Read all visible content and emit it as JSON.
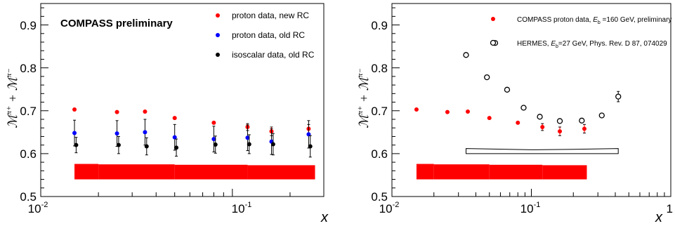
{
  "chart_data": [
    {
      "type": "scatter",
      "title": "COMPASS preliminary",
      "xlabel": "x",
      "ylabel": "M^{π+} + M^{π−}",
      "xscale": "log",
      "xlim": [
        0.01,
        0.3
      ],
      "ylim": [
        0.5,
        0.95
      ],
      "x_ticks": [
        {
          "value": 0.01,
          "base": "10",
          "exp": "-2"
        },
        {
          "value": 0.1,
          "base": "10",
          "exp": "-1"
        }
      ],
      "y_ticks": [
        {
          "value": 0.5,
          "label": "0.5"
        },
        {
          "value": 0.6,
          "label": "0.6"
        },
        {
          "value": 0.7,
          "label": "0.7"
        },
        {
          "value": 0.8,
          "label": "0.8"
        },
        {
          "value": 0.9,
          "label": "0.9"
        }
      ],
      "legend_position": "top-right",
      "series": [
        {
          "name": "proton data, new RC",
          "color": "#ff0000",
          "marker": "filled-circle",
          "points": [
            {
              "x": 0.015,
              "y": 0.703,
              "err": 0.002
            },
            {
              "x": 0.025,
              "y": 0.697,
              "err": 0.002
            },
            {
              "x": 0.035,
              "y": 0.698,
              "err": 0.002
            },
            {
              "x": 0.05,
              "y": 0.683,
              "err": 0.002
            },
            {
              "x": 0.08,
              "y": 0.672,
              "err": 0.002
            },
            {
              "x": 0.12,
              "y": 0.662,
              "err": 0.008
            },
            {
              "x": 0.16,
              "y": 0.652,
              "err": 0.01
            },
            {
              "x": 0.25,
              "y": 0.658,
              "err": 0.01
            }
          ]
        },
        {
          "name": "proton data, old RC",
          "color": "#0000ff",
          "marker": "filled-circle",
          "points": [
            {
              "x": 0.015,
              "y": 0.648,
              "err": 0.03
            },
            {
              "x": 0.025,
              "y": 0.647,
              "err": 0.03
            },
            {
              "x": 0.035,
              "y": 0.65,
              "err": 0.03
            },
            {
              "x": 0.05,
              "y": 0.638,
              "err": 0.03
            },
            {
              "x": 0.08,
              "y": 0.634,
              "err": 0.03
            },
            {
              "x": 0.12,
              "y": 0.637,
              "err": 0.03
            },
            {
              "x": 0.16,
              "y": 0.628,
              "err": 0.03
            },
            {
              "x": 0.25,
              "y": 0.645,
              "err": 0.032
            }
          ]
        },
        {
          "name": "isoscalar data, old RC",
          "color": "#000000",
          "marker": "filled-circle",
          "points": [
            {
              "x": 0.0153,
              "y": 0.62,
              "err": 0.018
            },
            {
              "x": 0.0255,
              "y": 0.62,
              "err": 0.02
            },
            {
              "x": 0.0357,
              "y": 0.617,
              "err": 0.02
            },
            {
              "x": 0.051,
              "y": 0.614,
              "err": 0.02
            },
            {
              "x": 0.0816,
              "y": 0.621,
              "err": 0.02
            },
            {
              "x": 0.1224,
              "y": 0.622,
              "err": 0.022
            },
            {
              "x": 0.1632,
              "y": 0.622,
              "err": 0.025
            },
            {
              "x": 0.255,
              "y": 0.617,
              "err": 0.025
            }
          ]
        }
      ],
      "systematic_band": {
        "color": "#ff0000",
        "segments": [
          {
            "x0": 0.015,
            "x1": 0.02,
            "y0": 0.54,
            "y1": 0.576
          },
          {
            "x0": 0.02,
            "x1": 0.05,
            "y0": 0.54,
            "y1": 0.575
          },
          {
            "x0": 0.05,
            "x1": 0.12,
            "y0": 0.54,
            "y1": 0.574
          },
          {
            "x0": 0.12,
            "x1": 0.27,
            "y0": 0.54,
            "y1": 0.573
          }
        ]
      }
    },
    {
      "type": "scatter",
      "xlabel": "x",
      "ylabel": "M^{π+} + M^{π−}",
      "xscale": "log",
      "xlim": [
        0.01,
        1
      ],
      "ylim": [
        0.5,
        0.95
      ],
      "x_ticks": [
        {
          "value": 0.01,
          "base": "10",
          "exp": "-2"
        },
        {
          "value": 0.1,
          "base": "10",
          "exp": "-1"
        },
        {
          "value": 1,
          "base": "1",
          "exp": ""
        }
      ],
      "y_ticks": [
        {
          "value": 0.5,
          "label": "0.5"
        },
        {
          "value": 0.6,
          "label": "0.6"
        },
        {
          "value": 0.7,
          "label": "0.7"
        },
        {
          "value": 0.8,
          "label": "0.8"
        },
        {
          "value": 0.9,
          "label": "0.9"
        }
      ],
      "legend_position": "top-right",
      "series": [
        {
          "name": "COMPASS proton data, E_b =160 GeV, preliminary",
          "legend_parts": {
            "pre": "COMPASS proton data, ",
            "italic": "E",
            "sub": "b",
            "post": " =160 GeV, preliminary"
          },
          "color": "#ff0000",
          "marker": "filled-circle",
          "points": [
            {
              "x": 0.015,
              "y": 0.703,
              "err": 0.002
            },
            {
              "x": 0.025,
              "y": 0.697,
              "err": 0.002
            },
            {
              "x": 0.035,
              "y": 0.698,
              "err": 0.002
            },
            {
              "x": 0.05,
              "y": 0.683,
              "err": 0.002
            },
            {
              "x": 0.08,
              "y": 0.672,
              "err": 0.002
            },
            {
              "x": 0.12,
              "y": 0.662,
              "err": 0.008
            },
            {
              "x": 0.16,
              "y": 0.652,
              "err": 0.01
            },
            {
              "x": 0.24,
              "y": 0.658,
              "err": 0.01
            }
          ]
        },
        {
          "name": "HERMES, E_b=27 GeV, Phys. Rev. D 87, 074029",
          "legend_parts": {
            "pre": "HERMES, ",
            "italic": "E",
            "sub": "b",
            "post": "=27 GeV, Phys. Rev. D 87, 074029"
          },
          "color": "#000000",
          "marker": "open-circle",
          "points": [
            {
              "x": 0.034,
              "y": 0.83,
              "err": 0.002
            },
            {
              "x": 0.048,
              "y": 0.778,
              "err": 0.002
            },
            {
              "x": 0.055,
              "y": 0.858,
              "err": 0.002
            },
            {
              "x": 0.067,
              "y": 0.749,
              "err": 0.002
            },
            {
              "x": 0.088,
              "y": 0.707,
              "err": 0.002
            },
            {
              "x": 0.115,
              "y": 0.686,
              "err": 0.002
            },
            {
              "x": 0.16,
              "y": 0.676,
              "err": 0.002
            },
            {
              "x": 0.23,
              "y": 0.677,
              "err": 0.002
            },
            {
              "x": 0.32,
              "y": 0.689,
              "err": 0.004
            },
            {
              "x": 0.42,
              "y": 0.733,
              "err": 0.012
            }
          ]
        }
      ],
      "systematic_band": {
        "color": "#ff0000",
        "segments": [
          {
            "x0": 0.015,
            "x1": 0.02,
            "y0": 0.54,
            "y1": 0.576
          },
          {
            "x0": 0.02,
            "x1": 0.05,
            "y0": 0.54,
            "y1": 0.575
          },
          {
            "x0": 0.05,
            "x1": 0.12,
            "y0": 0.54,
            "y1": 0.574
          },
          {
            "x0": 0.12,
            "x1": 0.25,
            "y0": 0.54,
            "y1": 0.573
          }
        ]
      },
      "systematic_band_outline": {
        "color": "#000000",
        "points": [
          {
            "x": 0.034,
            "y": 0.612
          },
          {
            "x": 0.1,
            "y": 0.609
          },
          {
            "x": 0.2,
            "y": 0.61
          },
          {
            "x": 0.42,
            "y": 0.612
          },
          {
            "x": 0.42,
            "y": 0.6
          },
          {
            "x": 0.034,
            "y": 0.6
          }
        ]
      }
    }
  ]
}
